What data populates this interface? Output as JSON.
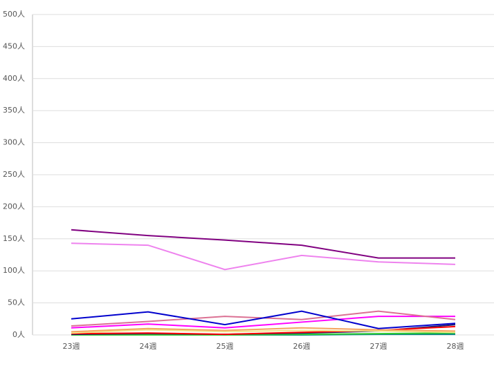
{
  "chart_data": {
    "type": "line",
    "categories": [
      "23週",
      "24週",
      "25週",
      "26週",
      "27週",
      "28週"
    ],
    "series": [
      {
        "color": "#800080",
        "values": [
          164,
          155,
          148,
          140,
          120,
          120
        ]
      },
      {
        "color": "#ee82ee",
        "values": [
          143,
          140,
          102,
          124,
          114,
          110
        ]
      },
      {
        "color": "#0000cd",
        "values": [
          25,
          36,
          16,
          37,
          10,
          18
        ]
      },
      {
        "color": "#db7093",
        "values": [
          14,
          21,
          29,
          24,
          37,
          24
        ]
      },
      {
        "color": "#ff00ff",
        "values": [
          11,
          17,
          11,
          20,
          29,
          29
        ]
      },
      {
        "color": "#f4a460",
        "values": [
          5,
          10,
          7,
          11,
          8,
          6
        ]
      },
      {
        "color": "#f0e68c",
        "values": [
          3,
          8,
          5,
          7,
          6,
          4
        ]
      },
      {
        "color": "#ff0000",
        "values": [
          2,
          3,
          1,
          4,
          7,
          13
        ]
      },
      {
        "color": "#191970",
        "values": [
          1,
          2,
          1,
          3,
          6,
          16
        ]
      },
      {
        "color": "#32cd32",
        "values": [
          0,
          0,
          0,
          1,
          2,
          3
        ]
      },
      {
        "color": "#008080",
        "values": [
          1,
          1,
          0,
          0,
          1,
          1
        ]
      }
    ],
    "ylim": [
      0,
      500
    ],
    "yticks": [
      {
        "value": 0,
        "label": "0人"
      },
      {
        "value": 50,
        "label": "50人"
      },
      {
        "value": 100,
        "label": "100人"
      },
      {
        "value": 150,
        "label": "150人"
      },
      {
        "value": 200,
        "label": "200人"
      },
      {
        "value": 250,
        "label": "250人"
      },
      {
        "value": 300,
        "label": "300人"
      },
      {
        "value": 350,
        "label": "350人"
      },
      {
        "value": 400,
        "label": "400人"
      },
      {
        "value": 450,
        "label": "450人"
      },
      {
        "value": 500,
        "label": "500人"
      }
    ],
    "grid": true
  }
}
